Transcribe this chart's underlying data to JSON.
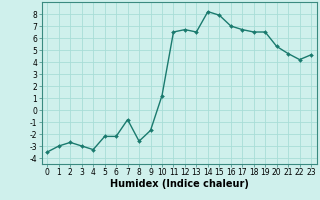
{
  "x": [
    0,
    1,
    2,
    3,
    4,
    5,
    6,
    7,
    8,
    9,
    10,
    11,
    12,
    13,
    14,
    15,
    16,
    17,
    18,
    19,
    20,
    21,
    22,
    23
  ],
  "y": [
    -3.5,
    -3.0,
    -2.7,
    -3.0,
    -3.3,
    -2.2,
    -2.2,
    -0.8,
    -2.6,
    -1.7,
    1.2,
    6.5,
    6.7,
    6.5,
    8.2,
    7.9,
    7.0,
    6.7,
    6.5,
    6.5,
    5.3,
    4.7,
    4.2,
    4.6
  ],
  "line_color": "#1a7a6e",
  "marker": "D",
  "markersize": 2.0,
  "linewidth": 1.0,
  "xlabel": "Humidex (Indice chaleur)",
  "xlabel_fontsize": 7,
  "xlim": [
    -0.5,
    23.5
  ],
  "ylim": [
    -4.5,
    9.0
  ],
  "yticks": [
    -4,
    -3,
    -2,
    -1,
    0,
    1,
    2,
    3,
    4,
    5,
    6,
    7,
    8
  ],
  "xticks": [
    0,
    1,
    2,
    3,
    4,
    5,
    6,
    7,
    8,
    9,
    10,
    11,
    12,
    13,
    14,
    15,
    16,
    17,
    18,
    19,
    20,
    21,
    22,
    23
  ],
  "background_color": "#cff0ec",
  "grid_color": "#a8ddd7",
  "tick_fontsize": 5.5
}
